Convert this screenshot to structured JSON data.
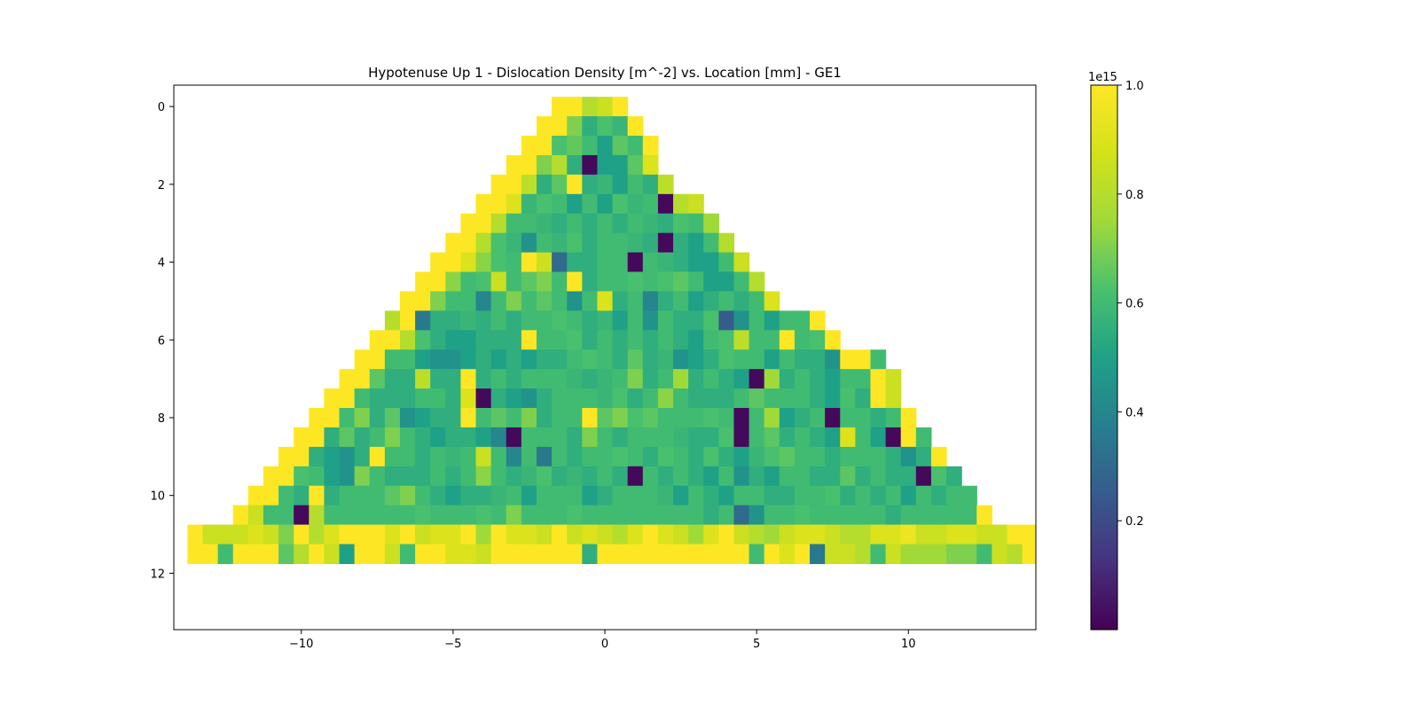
{
  "chart_data": {
    "type": "heatmap",
    "title": "Hypotenuse Up 1 - Dislocation Density [m^-2] vs. Location [mm] - GE1",
    "xlabel": "",
    "ylabel": "",
    "xlim": [
      -14.2,
      14.2
    ],
    "ylim": [
      13.45,
      -0.55
    ],
    "x_ticks": [
      "-10",
      "-5",
      "0",
      "5",
      "10"
    ],
    "x_tick_values": [
      -10,
      -5,
      0,
      5,
      10
    ],
    "y_ticks": [
      "0",
      "2",
      "4",
      "6",
      "8",
      "10",
      "12"
    ],
    "y_tick_values": [
      0,
      2,
      4,
      6,
      8,
      10,
      12
    ],
    "colormap": "viridis",
    "colorbar": {
      "min": 0.0,
      "max": 1.0,
      "exponent_label": "1e15",
      "tick_labels": [
        "0.2",
        "0.4",
        "0.6",
        "0.8",
        "1.0"
      ],
      "tick_values": [
        0.2,
        0.4,
        0.6,
        0.8,
        1.0
      ]
    },
    "grid": false,
    "cell_width": 0.5,
    "row_spacing": 0.5,
    "y_start": 0,
    "rows": [
      {
        "x_start": -1.75,
        "values": [
          1.0,
          1.0,
          0.8,
          0.85,
          1.0
        ]
      },
      {
        "x_start": -2.25,
        "values": [
          1.0,
          1.0,
          0.7,
          0.55,
          0.62,
          0.58,
          1.0
        ]
      },
      {
        "x_start": -2.75,
        "values": [
          1.0,
          1.0,
          0.62,
          0.66,
          0.6,
          0.5,
          0.65,
          0.6,
          1.0
        ]
      },
      {
        "x_start": -3.25,
        "values": [
          1.0,
          1.0,
          0.7,
          0.8,
          0.55,
          0.02,
          0.5,
          0.5,
          0.65,
          0.9
        ]
      },
      {
        "x_start": -3.75,
        "values": [
          1.0,
          1.0,
          0.82,
          0.55,
          0.65,
          1.0,
          0.55,
          0.58,
          0.5,
          0.6,
          0.55,
          0.82
        ]
      },
      {
        "x_start": -4.25,
        "values": [
          1.0,
          1.0,
          0.9,
          0.58,
          0.62,
          0.6,
          0.5,
          0.6,
          0.5,
          0.62,
          0.58,
          0.6,
          0.02,
          0.8,
          0.85
        ]
      },
      {
        "x_start": -4.75,
        "values": [
          1.0,
          1.0,
          0.8,
          0.6,
          0.6,
          0.58,
          0.55,
          0.6,
          0.55,
          0.6,
          0.55,
          0.6,
          0.58,
          0.55,
          0.62,
          0.6,
          0.75
        ]
      },
      {
        "x_start": -5.25,
        "values": [
          1.0,
          1.0,
          0.8,
          0.62,
          0.58,
          0.45,
          0.6,
          0.58,
          0.62,
          0.55,
          0.6,
          0.6,
          0.58,
          0.55,
          0.02,
          0.55,
          0.5,
          0.6,
          0.8
        ]
      },
      {
        "x_start": -5.75,
        "values": [
          1.0,
          1.0,
          0.9,
          0.72,
          0.62,
          0.6,
          1.0,
          0.85,
          0.3,
          0.55,
          0.55,
          0.6,
          0.6,
          0.02,
          0.6,
          0.58,
          0.55,
          0.5,
          0.5,
          0.6,
          0.85
        ]
      },
      {
        "x_start": -6.25,
        "values": [
          1.0,
          1.0,
          0.72,
          0.6,
          0.62,
          0.85,
          0.6,
          0.65,
          0.7,
          0.6,
          1.0,
          0.55,
          0.6,
          0.6,
          0.62,
          0.6,
          0.62,
          0.65,
          0.6,
          0.5,
          0.5,
          0.6,
          0.8
        ]
      },
      {
        "x_start": -6.75,
        "values": [
          1.0,
          1.0,
          0.7,
          0.6,
          0.6,
          0.4,
          0.6,
          0.7,
          0.6,
          0.65,
          0.6,
          0.45,
          0.6,
          0.9,
          0.55,
          0.6,
          0.4,
          0.55,
          0.6,
          0.5,
          0.55,
          0.6,
          0.55,
          0.6,
          0.9
        ]
      },
      {
        "x_start": -7.25,
        "values": [
          0.8,
          1.0,
          0.35,
          0.55,
          0.55,
          0.58,
          0.55,
          0.6,
          0.55,
          0.6,
          0.6,
          0.62,
          0.6,
          0.55,
          0.58,
          0.5,
          0.6,
          0.45,
          0.6,
          0.55,
          0.55,
          0.62,
          0.25,
          0.45,
          0.6,
          0.5,
          0.6,
          0.6,
          1.0
        ]
      },
      {
        "x_start": -7.75,
        "values": [
          1.0,
          1.0,
          0.8,
          0.62,
          0.55,
          0.5,
          0.5,
          0.55,
          0.55,
          0.55,
          1.0,
          0.6,
          0.6,
          0.62,
          0.55,
          0.6,
          0.55,
          0.6,
          0.55,
          0.6,
          0.55,
          0.5,
          0.6,
          0.62,
          0.82,
          0.6,
          0.6,
          1.0,
          0.6,
          0.62,
          1.0
        ]
      },
      {
        "x_start": -8.25,
        "values": [
          1.0,
          1.0,
          0.6,
          0.6,
          0.5,
          0.45,
          0.45,
          0.5,
          0.55,
          0.5,
          0.55,
          0.5,
          0.55,
          0.55,
          0.6,
          0.62,
          0.6,
          0.55,
          0.65,
          0.55,
          0.58,
          0.45,
          0.5,
          0.55,
          0.62,
          0.6,
          0.6,
          0.5,
          0.6,
          0.55,
          0.55,
          0.45,
          1.0,
          1.0,
          0.6
        ]
      },
      {
        "x_start": -8.75,
        "values": [
          1.0,
          1.0,
          0.65,
          0.55,
          0.55,
          0.82,
          0.55,
          0.55,
          1.0,
          0.55,
          0.6,
          0.55,
          0.6,
          0.6,
          0.6,
          0.58,
          0.55,
          0.58,
          0.6,
          0.7,
          0.55,
          0.6,
          0.75,
          0.55,
          0.6,
          0.55,
          0.5,
          0.02,
          0.75,
          0.55,
          0.6,
          0.55,
          0.5,
          0.6,
          0.6,
          1.0,
          0.85
        ]
      },
      {
        "x_start": -9.25,
        "values": [
          1.0,
          1.0,
          0.6,
          0.55,
          0.55,
          0.55,
          0.6,
          0.6,
          0.55,
          0.9,
          0.02,
          0.55,
          0.5,
          0.45,
          0.55,
          0.6,
          0.6,
          0.6,
          0.58,
          0.62,
          0.55,
          0.6,
          0.72,
          0.6,
          0.55,
          0.55,
          0.55,
          0.6,
          0.65,
          0.6,
          0.6,
          0.6,
          0.55,
          0.5,
          0.62,
          0.55,
          1.0,
          0.85
        ]
      },
      {
        "x_start": -9.75,
        "values": [
          1.0,
          1.0,
          0.6,
          0.7,
          0.55,
          0.65,
          0.45,
          0.5,
          0.55,
          0.55,
          1.0,
          0.6,
          0.65,
          0.6,
          0.7,
          0.55,
          0.6,
          0.6,
          1.0,
          0.65,
          0.7,
          0.62,
          0.65,
          0.6,
          0.6,
          0.6,
          0.62,
          0.6,
          0.02,
          0.6,
          0.75,
          0.5,
          0.55,
          0.6,
          0.02,
          0.6,
          0.6,
          0.55,
          0.6,
          1.0
        ]
      },
      {
        "x_start": -10.25,
        "values": [
          1.0,
          1.0,
          0.55,
          0.65,
          0.55,
          0.6,
          0.7,
          0.6,
          0.55,
          0.5,
          0.55,
          0.55,
          0.5,
          0.4,
          0.02,
          0.6,
          0.6,
          0.6,
          0.55,
          0.7,
          0.6,
          0.55,
          0.6,
          0.6,
          0.6,
          0.58,
          0.55,
          0.55,
          0.62,
          0.02,
          0.6,
          0.65,
          0.55,
          0.6,
          0.55,
          0.5,
          0.9,
          0.6,
          0.5,
          0.02,
          1.0,
          0.6
        ]
      },
      {
        "x_start": -10.75,
        "values": [
          1.0,
          1.0,
          0.55,
          0.5,
          0.45,
          0.55,
          1.0,
          0.6,
          0.6,
          0.55,
          0.6,
          0.58,
          0.6,
          0.85,
          0.6,
          0.4,
          0.6,
          0.35,
          0.6,
          0.55,
          0.6,
          0.6,
          0.62,
          0.6,
          0.55,
          0.62,
          0.6,
          0.55,
          0.62,
          0.55,
          0.5,
          0.58,
          0.62,
          0.65,
          0.6,
          0.6,
          0.55,
          0.6,
          0.6,
          0.6,
          0.55,
          0.45,
          0.55,
          1.0
        ]
      },
      {
        "x_start": -11.25,
        "values": [
          1.0,
          1.0,
          0.62,
          0.6,
          0.5,
          0.45,
          0.7,
          0.6,
          0.55,
          0.55,
          0.55,
          0.6,
          0.55,
          0.6,
          0.72,
          0.6,
          0.55,
          0.58,
          0.62,
          0.55,
          0.58,
          0.55,
          0.6,
          0.55,
          0.02,
          0.6,
          0.55,
          0.6,
          0.55,
          0.5,
          0.6,
          0.45,
          0.55,
          0.5,
          0.6,
          0.6,
          0.55,
          0.55,
          0.65,
          0.55,
          0.6,
          0.55,
          0.55,
          0.02,
          0.62,
          0.55
        ]
      },
      {
        "x_start": -11.75,
        "values": [
          1.0,
          1.0,
          0.6,
          0.55,
          1.0,
          0.55,
          0.6,
          0.6,
          0.6,
          0.65,
          0.7,
          0.6,
          0.55,
          0.5,
          0.55,
          0.55,
          0.58,
          0.6,
          0.5,
          0.6,
          0.6,
          0.6,
          0.5,
          0.55,
          0.6,
          0.6,
          0.6,
          0.58,
          0.5,
          0.6,
          0.55,
          0.5,
          0.6,
          0.6,
          0.55,
          0.55,
          0.6,
          0.6,
          0.62,
          0.55,
          0.6,
          0.55,
          0.6,
          0.5,
          0.6,
          0.55,
          0.6,
          0.6
        ]
      },
      {
        "x_start": -12.25,
        "values": [
          1.0,
          0.85,
          0.6,
          0.6,
          0.02,
          0.8,
          0.6,
          0.6,
          0.6,
          0.6,
          0.6,
          0.6,
          0.62,
          0.6,
          0.6,
          0.6,
          0.62,
          0.6,
          0.7,
          0.6,
          0.6,
          0.6,
          0.62,
          0.6,
          0.6,
          0.6,
          0.6,
          0.6,
          0.6,
          0.6,
          0.6,
          0.55,
          0.6,
          0.3,
          0.45,
          0.6,
          0.6,
          0.62,
          0.6,
          0.6,
          0.6,
          0.6,
          0.6,
          0.55,
          0.6,
          0.6,
          0.6,
          0.6,
          0.6,
          1.0
        ]
      },
      {
        "x_start": -13.75,
        "values": [
          1.0,
          0.85,
          0.85,
          0.85,
          0.9,
          0.85,
          0.7,
          1.0,
          0.8,
          0.9,
          1.0,
          1.0,
          1.0,
          0.9,
          1.0,
          0.85,
          0.9,
          0.9,
          1.0,
          0.75,
          1.0,
          0.9,
          0.9,
          0.85,
          1.0,
          0.85,
          0.9,
          0.85,
          0.8,
          0.9,
          1.0,
          0.9,
          0.85,
          0.75,
          0.9,
          1.0,
          0.85,
          0.8,
          0.75,
          0.85,
          0.9,
          0.9,
          0.85,
          0.8,
          0.8,
          0.9,
          0.9,
          0.95,
          0.85,
          0.85,
          0.9,
          0.9,
          0.85,
          0.85,
          1.0,
          1.0
        ]
      },
      {
        "x_start": -13.75,
        "values": [
          1.0,
          1.0,
          0.6,
          1.0,
          1.0,
          1.0,
          0.65,
          0.8,
          1.0,
          0.85,
          0.5,
          1.0,
          1.0,
          0.85,
          0.6,
          1.0,
          1.0,
          0.9,
          0.9,
          0.85,
          1.0,
          1.0,
          1.0,
          1.0,
          1.0,
          1.0,
          0.55,
          1.0,
          1.0,
          1.0,
          1.0,
          1.0,
          1.0,
          1.0,
          1.0,
          1.0,
          1.0,
          0.6,
          1.0,
          0.9,
          1.0,
          0.35,
          0.85,
          0.85,
          0.8,
          0.6,
          0.85,
          0.75,
          0.75,
          0.75,
          0.7,
          0.7,
          0.6,
          0.85,
          0.8,
          1.0
        ]
      }
    ]
  }
}
